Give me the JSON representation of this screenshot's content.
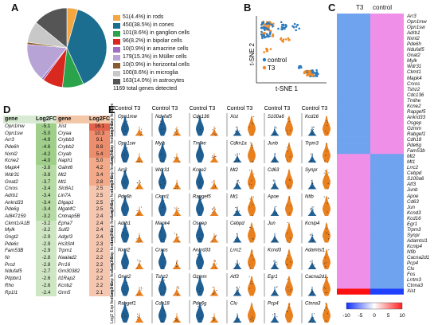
{
  "panels": {
    "a": "A",
    "b": "B",
    "c": "C",
    "d": "D",
    "e": "E"
  },
  "pie": {
    "slices": [
      {
        "label": "51(4.4%) in rods",
        "value": 4.4,
        "color": "#f4a640"
      },
      {
        "label": "450(38.5%) in cones",
        "value": 38.5,
        "color": "#1b6e8f"
      },
      {
        "label": "101(8.6%) in ganglion cells",
        "value": 8.6,
        "color": "#2aa34a"
      },
      {
        "label": "96(8.2%) in bipolar cells",
        "value": 8.2,
        "color": "#d9281e"
      },
      {
        "label": "10(0.9%) in amacrine cells",
        "value": 0.9,
        "color": "#9e6fc4"
      },
      {
        "label": "179(15.3%) in Müller cells",
        "value": 15.3,
        "color": "#b7a3d6"
      },
      {
        "label": "10(0.9%) in horizontal cells",
        "value": 0.9,
        "color": "#8a5a2e"
      },
      {
        "label": "100(8.6%) in microglia",
        "value": 8.6,
        "color": "#c8c8c8"
      },
      {
        "label": "163(14.0%) in astrocytes",
        "value": 14.0,
        "color": "#555555"
      }
    ],
    "total": "1169 total genes detected"
  },
  "tsne": {
    "legend": [
      "control",
      "T3"
    ],
    "xlabel": "t-SNE 1",
    "ylabel": "t-SNE 2",
    "colors": [
      "#2b7bbf",
      "#f08a24"
    ]
  },
  "heatmap": {
    "col_labels": [
      "T3",
      "control"
    ],
    "genes": [
      "Arr3",
      "Opn1mw",
      "Opn1sw",
      "Adrb1",
      "Nxnl2",
      "Pde6h",
      "Ndufaf5",
      "Gnat2",
      "Mylk",
      "Wdr31",
      "Ckmt1",
      "Mapk4",
      "Crxos",
      "Tshz2",
      "Cdc136",
      "Tmlhe",
      "Kcne2",
      "Rapgef5",
      "Ankrd33",
      "Osgep",
      "Gzmm",
      "Rabgef1",
      "Cdh18",
      "Pde6g",
      "Fam53b",
      "Mt2",
      "Mt1",
      "Lrrc2",
      "Cebpd",
      "S100a6",
      "Atf3",
      "Junb",
      "Apoe",
      "Cd63",
      "Jun",
      "Kcnd3",
      "Kcd16",
      "Egr1",
      "Trpm3",
      "Synpr",
      "Adamtsl1",
      "Kcnip4",
      "Nfib",
      "Cacna2d1",
      "Pcp4",
      "Clu",
      "Fos",
      "Lrrtm3",
      "Ctnna3",
      "Xist"
    ],
    "scale": [
      "-10",
      "-5",
      "0",
      "5",
      "10"
    ]
  },
  "table_down": {
    "headers": [
      "gene",
      "Log2FC"
    ],
    "rows": [
      [
        "Opn1mw",
        "-5.1"
      ],
      [
        "Opn1sw",
        "-5.0"
      ],
      [
        "Arr3",
        "-4.9"
      ],
      [
        "Pde6h",
        "-4.6"
      ],
      [
        "Nxnl2",
        "-4.2"
      ],
      [
        "Kcne2",
        "-4.0"
      ],
      [
        "Mapk4",
        "-3.8"
      ],
      [
        "Wdr31",
        "-3.8"
      ],
      [
        "Gnat2",
        "-3.7"
      ],
      [
        "Crxos",
        "-3.4"
      ],
      [
        "Adrb1",
        "-3.4"
      ],
      [
        "Ankrd33",
        "-3.4"
      ],
      [
        "Pde6g",
        "-3.4"
      ],
      [
        "AI847159",
        "-3.2"
      ],
      [
        "Ckmt1/A1B",
        "-3.2"
      ],
      [
        "Mylk",
        "-3.2"
      ],
      [
        "Gngt2",
        "-2.9"
      ],
      [
        "Pde6c",
        "-2.9"
      ],
      [
        "Fam53B",
        "-2.9"
      ],
      [
        "Nr",
        "-2.8"
      ],
      [
        "Prcd",
        "-2.8"
      ],
      [
        "Ndufaf5",
        "-2.7"
      ],
      [
        "Pitpbn1",
        "-2.6"
      ],
      [
        "Rho",
        "-2.6"
      ],
      [
        "Rp1l1",
        "-2.4"
      ]
    ]
  },
  "table_up": {
    "headers": [
      "gene",
      "Log2FC"
    ],
    "rows": [
      [
        "Xist",
        "16.1"
      ],
      [
        "Cryaa",
        "10.3"
      ],
      [
        "Crybb3",
        "9.1"
      ],
      [
        "Crybb2",
        "8.8"
      ],
      [
        "Cryab",
        "5.4"
      ],
      [
        "Naph1",
        "5.0"
      ],
      [
        "Galnt6",
        "4.2"
      ],
      [
        "Mt2",
        "3.4"
      ],
      [
        "Mt1",
        "2.8"
      ],
      [
        "Slc8A1",
        "2.5"
      ],
      [
        "Lin7A",
        "2.5"
      ],
      [
        "Dlgap1",
        "2.5"
      ],
      [
        "Mgat4C",
        "2.5"
      ],
      [
        "Cntnap5B",
        "2.4"
      ],
      [
        "Epha7",
        "2.4"
      ],
      [
        "Sulf2",
        "2.4"
      ],
      [
        "Adgrl3",
        "2.4"
      ],
      [
        "Hs3St4",
        "2.3"
      ],
      [
        "Trpm1",
        "2.2"
      ],
      [
        "Naalad2",
        "2.2"
      ],
      [
        "Prr16",
        "2.2"
      ],
      [
        "Gm30382",
        "2.2"
      ],
      [
        "Il1Rap2",
        "2.2"
      ],
      [
        "Kcnb2",
        "2.2"
      ],
      [
        "Grm5",
        "2.1"
      ]
    ]
  },
  "violin": {
    "col_header": "Control T3",
    "ylabel": "Log2 Exp feature max",
    "genes": [
      [
        "Opn1mw",
        "Ndufaf5",
        "Cdc136",
        "Xist",
        "S100a6",
        "Kcd16"
      ],
      [
        "Opn1sw",
        "Mylk",
        "Tmlhe",
        "Cdkn1a",
        "Junb",
        "Trpm3"
      ],
      [
        "Arr3",
        "Wdr31",
        "Kcne2",
        "Mt2",
        "Cd63",
        "Synpr"
      ],
      [
        "Pde6h",
        "Ckmt1",
        "Rapgef5",
        "Mt1",
        "Apoe",
        "Nfib"
      ],
      [
        "Adrb1",
        "Mapk4",
        "Osgep",
        "Cebpd",
        "Jun",
        "Kcnip4"
      ],
      [
        "Nxnl2",
        "Crxos",
        "Ankrd33",
        "Lrrc2",
        "Kcnd3",
        "Adamtsl1"
      ],
      [
        "Gnat2",
        "Tshz2",
        "Gzmm",
        "Atf3",
        "Egr1",
        "Cacna2d1"
      ],
      [
        "Rabgef1",
        "Cdh18",
        "Pde6g",
        "Clu",
        "Pcp4",
        "Ctnna3"
      ]
    ],
    "colors": {
      "control": "#1f5f94",
      "t3": "#e8801f"
    }
  }
}
